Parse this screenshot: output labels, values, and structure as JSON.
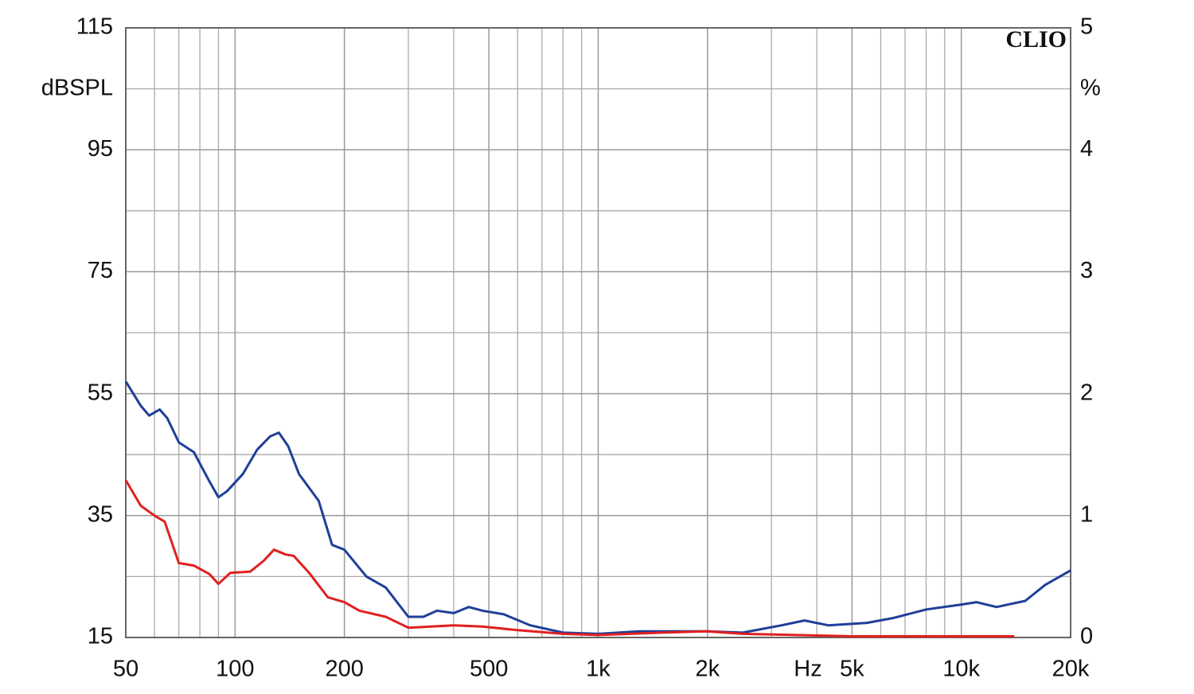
{
  "chart_data": {
    "type": "line",
    "logo": "CLIO",
    "y_label": "dBSPL",
    "y2_label": "%",
    "x_label": "Hz",
    "xlog": true,
    "grid": true,
    "xlim": [
      50,
      20000
    ],
    "xticks": [
      50,
      100,
      200,
      500,
      {
        "value": 1000,
        "label": "1k"
      },
      {
        "value": 2000,
        "label": "2k"
      },
      {
        "value": 5000,
        "label": "5k"
      },
      {
        "value": 10000,
        "label": "10k"
      },
      {
        "value": 20000,
        "label": "20k"
      }
    ],
    "xminor": [
      60,
      70,
      80,
      90,
      300,
      400,
      600,
      700,
      800,
      900,
      3000,
      4000,
      6000,
      7000,
      8000,
      9000
    ],
    "ylim": [
      15,
      115
    ],
    "yticks": [
      15,
      35,
      55,
      75,
      95,
      115
    ],
    "yminor": [
      25,
      45,
      65,
      85,
      105
    ],
    "y2lim": [
      0,
      5
    ],
    "y2ticks": [
      0,
      1,
      2,
      3,
      4,
      5
    ],
    "series": [
      {
        "color": "#1f3f99",
        "axis": "y2",
        "x": [
          50,
          55,
          58,
          62,
          65,
          70,
          77,
          85,
          90,
          95,
          105,
          115,
          125,
          132,
          140,
          150,
          170,
          185,
          200,
          230,
          260,
          300,
          330,
          360,
          400,
          440,
          480,
          550,
          650,
          800,
          1000,
          1300,
          1700,
          2000,
          2500,
          3200,
          3700,
          4300,
          5500,
          6500,
          8000,
          10000,
          11000,
          12500,
          15000,
          17000,
          20000
        ],
        "values": [
          2.1,
          1.9,
          1.82,
          1.87,
          1.8,
          1.6,
          1.52,
          1.28,
          1.15,
          1.2,
          1.34,
          1.54,
          1.65,
          1.68,
          1.57,
          1.34,
          1.12,
          0.76,
          0.72,
          0.5,
          0.41,
          0.17,
          0.17,
          0.22,
          0.2,
          0.25,
          0.22,
          0.19,
          0.1,
          0.04,
          0.03,
          0.05,
          0.05,
          0.05,
          0.04,
          0.1,
          0.14,
          0.1,
          0.12,
          0.16,
          0.23,
          0.27,
          0.29,
          0.25,
          0.3,
          0.43,
          0.55
        ]
      },
      {
        "color": "#e02020",
        "axis": "y2",
        "x": [
          50,
          55,
          60,
          64,
          70,
          77,
          85,
          90,
          97,
          110,
          120,
          128,
          138,
          145,
          160,
          180,
          200,
          220,
          260,
          300,
          400,
          480,
          600,
          800,
          1000,
          1500,
          2000,
          2500,
          3500,
          5000,
          8000,
          14000
        ],
        "values": [
          1.29,
          1.08,
          1.0,
          0.95,
          0.61,
          0.59,
          0.52,
          0.44,
          0.53,
          0.54,
          0.63,
          0.72,
          0.68,
          0.67,
          0.53,
          0.33,
          0.29,
          0.22,
          0.17,
          0.08,
          0.1,
          0.09,
          0.06,
          0.03,
          0.02,
          0.04,
          0.05,
          0.03,
          0.02,
          0.01,
          0.01,
          0.01
        ]
      }
    ]
  }
}
